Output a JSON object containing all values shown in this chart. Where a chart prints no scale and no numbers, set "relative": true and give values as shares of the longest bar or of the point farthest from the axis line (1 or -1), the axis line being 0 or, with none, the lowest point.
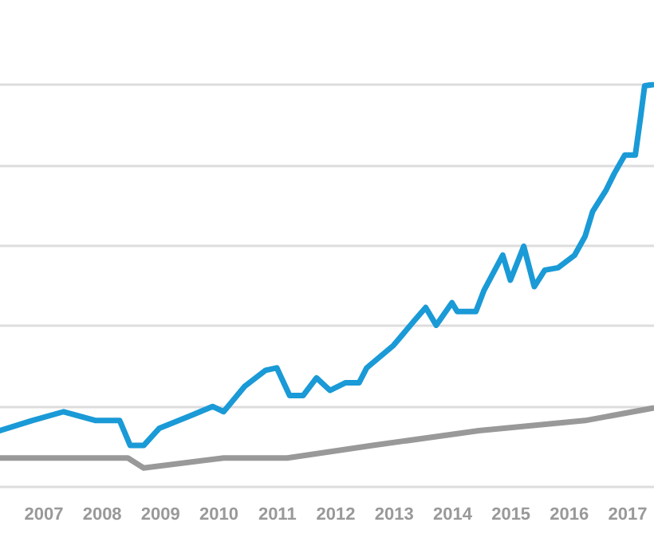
{
  "chart_data": {
    "type": "line",
    "relative": true,
    "grid": "y",
    "tick_labels": "x",
    "marker": "none",
    "line_style": "solid",
    "xlim": [
      2006.25,
      2017.45
    ],
    "xticks": [
      2007,
      2008,
      2009,
      2010,
      2011,
      2012,
      2013,
      2014,
      2015,
      2016,
      2017
    ],
    "series": [
      {
        "color": "#1a9ad6",
        "x": [
          2006.25,
          2006.8,
          2007.34,
          2007.89,
          2008.3,
          2008.48,
          2008.71,
          2008.98,
          2009.53,
          2009.89,
          2010.08,
          2010.44,
          2010.8,
          2010.99,
          2011.21,
          2011.44,
          2011.67,
          2011.9,
          2012.17,
          2012.4,
          2012.53,
          2012.99,
          2013.35,
          2013.54,
          2013.72,
          2013.99,
          2014.08,
          2014.4,
          2014.54,
          2014.86,
          2014.99,
          2015.22,
          2015.4,
          2015.58,
          2015.81,
          2016.09,
          2016.27,
          2016.4,
          2016.63,
          2016.77,
          2016.95,
          2017.13,
          2017.22,
          2017.29,
          2017.43
        ],
        "values": [
          0.14,
          0.165,
          0.187,
          0.165,
          0.165,
          0.103,
          0.103,
          0.146,
          0.178,
          0.2,
          0.187,
          0.25,
          0.29,
          0.296,
          0.227,
          0.227,
          0.271,
          0.24,
          0.259,
          0.259,
          0.296,
          0.352,
          0.414,
          0.446,
          0.402,
          0.458,
          0.436,
          0.436,
          0.489,
          0.576,
          0.514,
          0.598,
          0.498,
          0.539,
          0.545,
          0.576,
          0.623,
          0.685,
          0.738,
          0.779,
          0.825,
          0.825,
          0.919,
          0.997,
          1.0
        ]
      },
      {
        "color": "#999999",
        "x": [
          2006.25,
          2008.44,
          2008.71,
          2010.08,
          2011.17,
          2012.63,
          2014.45,
          2016.27,
          2017.43
        ],
        "values": [
          0.072,
          0.072,
          0.047,
          0.072,
          0.072,
          0.103,
          0.14,
          0.165,
          0.196
        ]
      }
    ]
  }
}
